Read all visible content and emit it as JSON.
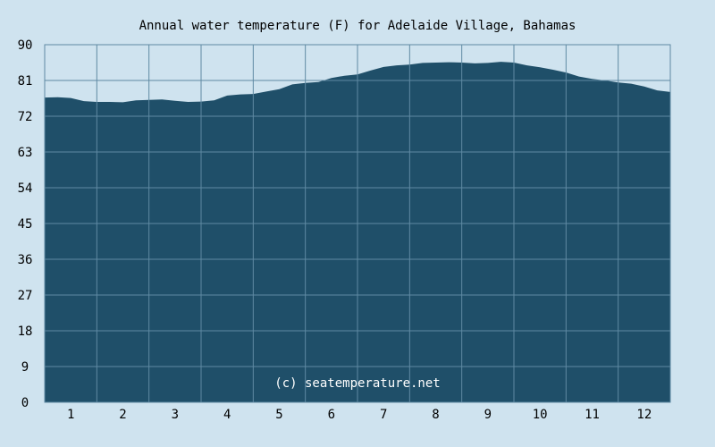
{
  "colors": {
    "background": "#cfe3ef",
    "area_fill": "#1f4f69",
    "grid": "#5f8aa3",
    "text": "#000000"
  },
  "chart_data": {
    "type": "area",
    "title": "Annual water temperature (F) for Adelaide Village, Bahamas",
    "xlabel": "",
    "ylabel": "",
    "ylim": [
      0,
      90
    ],
    "xlim": [
      0.5,
      12.5
    ],
    "yticks": [
      0,
      9,
      18,
      27,
      36,
      45,
      54,
      63,
      72,
      81,
      90
    ],
    "xticks": [
      1,
      2,
      3,
      4,
      5,
      6,
      7,
      8,
      9,
      10,
      11,
      12
    ],
    "grid": true,
    "watermark": "(c) seatemperature.net",
    "series": [
      {
        "x": [
          0.5,
          0.75,
          1.0,
          1.25,
          1.5,
          1.75,
          2.0,
          2.25,
          2.5,
          2.75,
          3.0,
          3.25,
          3.5,
          3.75,
          4.0,
          4.25,
          4.5,
          4.75,
          5.0,
          5.25,
          5.5,
          5.75,
          6.0,
          6.25,
          6.5,
          6.75,
          7.0,
          7.25,
          7.5,
          7.75,
          8.0,
          8.25,
          8.5,
          8.75,
          9.0,
          9.25,
          9.5,
          9.75,
          10.0,
          10.25,
          10.5,
          10.75,
          11.0,
          11.25,
          11.5,
          11.75,
          12.0,
          12.25,
          12.5
        ],
        "values": [
          76.7,
          76.8,
          76.6,
          75.8,
          75.6,
          75.6,
          75.5,
          76.0,
          76.1,
          76.2,
          75.9,
          75.6,
          75.7,
          76.0,
          77.2,
          77.5,
          77.6,
          78.2,
          78.8,
          80.0,
          80.4,
          80.6,
          81.6,
          82.2,
          82.5,
          83.5,
          84.4,
          84.8,
          85.0,
          85.4,
          85.5,
          85.6,
          85.5,
          85.3,
          85.4,
          85.7,
          85.5,
          84.8,
          84.3,
          83.7,
          83.0,
          82.0,
          81.4,
          81.0,
          80.5,
          80.2,
          79.5,
          78.5,
          78.1
        ]
      }
    ]
  }
}
